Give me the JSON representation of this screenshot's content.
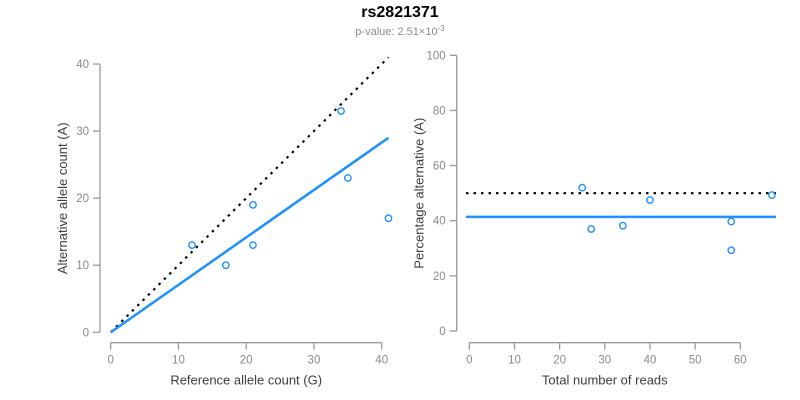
{
  "header": {
    "title": "rs2821371",
    "subtitle_main": "p-value: 2.51×10",
    "subtitle_exponent": "-3"
  },
  "colors": {
    "accent_blue": "#1E90FF",
    "dotted_line_black": "#000000",
    "axis_line_gray": "#9a9a9a",
    "tick_label_gray": "#8a8a8a",
    "axis_title_dark": "#3d3d3d",
    "subtitle_gray": "#8a8a8a",
    "background": "#ffffff"
  },
  "chart_data": [
    {
      "type": "scatter",
      "panel": "left",
      "xlabel": "Reference allele count (G)",
      "ylabel": "Alternative allele count (A)",
      "xticks": [
        0,
        10,
        20,
        30,
        40
      ],
      "yticks": [
        0,
        10,
        20,
        30,
        40
      ],
      "xlim": [
        0,
        41
      ],
      "ylim": [
        0,
        41
      ],
      "grid": false,
      "points": [
        [
          12,
          13
        ],
        [
          17,
          10
        ],
        [
          21,
          13
        ],
        [
          21,
          19
        ],
        [
          34,
          33
        ],
        [
          35,
          23
        ],
        [
          41,
          17
        ]
      ],
      "lines": [
        {
          "name": "identity-line",
          "style": "dotted",
          "color": "#000000",
          "x1": 0,
          "y1": 0,
          "x2": 41,
          "y2": 41
        },
        {
          "name": "fit-line",
          "style": "solid",
          "color": "#1E90FF",
          "x1": 0,
          "y1": 0,
          "x2": 41,
          "y2": 29
        }
      ]
    },
    {
      "type": "scatter",
      "panel": "right",
      "xlabel": "Total number of reads",
      "ylabel": "Percentage alternative (A)",
      "xticks": [
        0,
        10,
        20,
        30,
        40,
        50,
        60
      ],
      "yticks": [
        0,
        20,
        40,
        60,
        80,
        100
      ],
      "xlim": [
        0,
        67
      ],
      "ylim": [
        0,
        100
      ],
      "grid": false,
      "points": [
        [
          25,
          52.0
        ],
        [
          27,
          37.0
        ],
        [
          34,
          38.2
        ],
        [
          40,
          47.5
        ],
        [
          58,
          39.7
        ],
        [
          58,
          29.3
        ],
        [
          67,
          49.3
        ]
      ],
      "lines": [
        {
          "name": "expected-50pct-line",
          "style": "dotted",
          "color": "#000000",
          "h": 50
        },
        {
          "name": "observed-pct-line",
          "style": "solid",
          "color": "#1E90FF",
          "h": 41.4
        }
      ]
    }
  ]
}
